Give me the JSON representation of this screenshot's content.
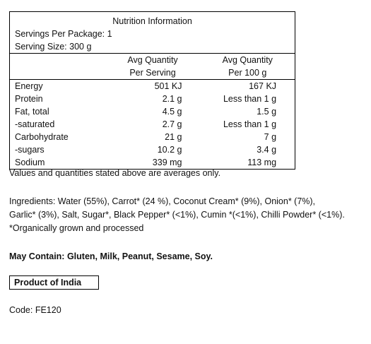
{
  "panel": {
    "title": "Nutrition Information",
    "servings_per_package": "Servings Per Package: 1",
    "serving_size": "Serving Size: 300 g",
    "col_serving_line1": "Avg Quantity",
    "col_serving_line2": "Per Serving",
    "col_100g_line1": "Avg Quantity",
    "col_100g_line2": "Per 100 g",
    "rows": [
      {
        "name": "Energy",
        "per_serving": "501 KJ",
        "per_100g": "167 KJ"
      },
      {
        "name": "Protein",
        "per_serving": "2.1 g",
        "per_100g": "Less than 1 g"
      },
      {
        "name": "Fat, total",
        "per_serving": "4.5 g",
        "per_100g": "1.5 g"
      },
      {
        "name": "-saturated",
        "per_serving": "2.7 g",
        "per_100g": "Less than 1 g"
      },
      {
        "name": "Carbohydrate",
        "per_serving": "21 g",
        "per_100g": "7 g"
      },
      {
        "name": "-sugars",
        "per_serving": "10.2 g",
        "per_100g": "3.4 g"
      },
      {
        "name": "Sodium",
        "per_serving": "339 mg",
        "per_100g": "113 mg"
      }
    ]
  },
  "averages_note": "Values and quantities stated above are averages only.",
  "ingredients_line1": "Ingredients: Water (55%), Carrot* (24 %), Coconut Cream* (9%), Onion* (7%),",
  "ingredients_line2": "Garlic* (3%), Salt, Sugar*, Black Pepper* (<1%), Cumin *(<1%), Chilli Powder* (<1%).",
  "organic_note": "*Organically grown and processed",
  "allergens": "May Contain: Gluten, Milk, Peanut, Sesame, Soy.",
  "origin": "Product of India",
  "code": "Code: FE120"
}
